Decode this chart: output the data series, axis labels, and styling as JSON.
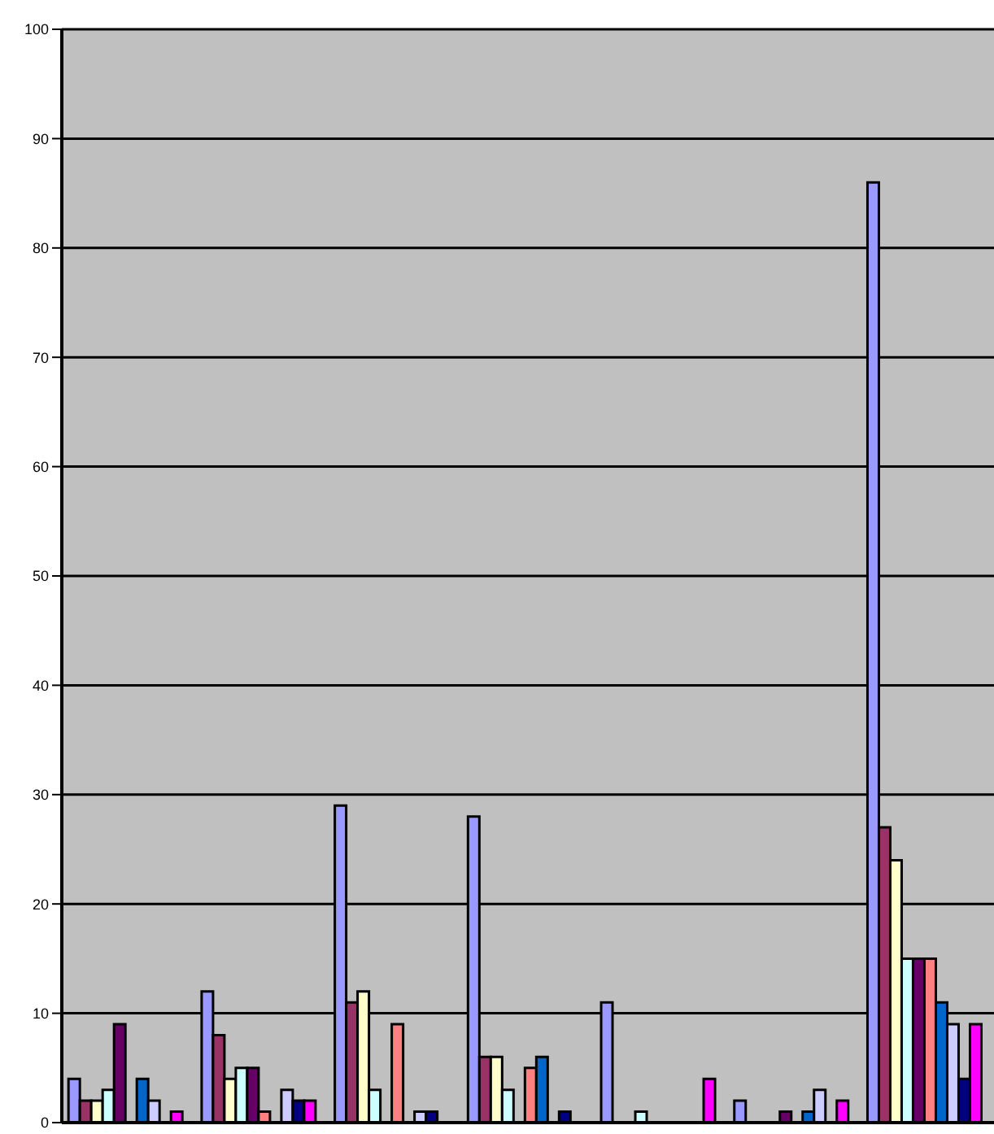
{
  "chart_data": {
    "type": "bar",
    "categories": [
      null,
      null,
      null,
      null,
      null,
      null,
      null
    ],
    "series": [
      {
        "color": "#9999ff",
        "values": [
          4,
          12,
          29,
          28,
          11,
          2,
          86
        ]
      },
      {
        "color": "#993366",
        "values": [
          2,
          8,
          11,
          6,
          0,
          0,
          27
        ]
      },
      {
        "color": "#ffffcc",
        "values": [
          2,
          4,
          12,
          6,
          0,
          0,
          24
        ]
      },
      {
        "color": "#ccffff",
        "values": [
          3,
          5,
          3,
          3,
          1,
          0,
          15
        ]
      },
      {
        "color": "#660066",
        "values": [
          9,
          5,
          0,
          0,
          0,
          1,
          15
        ]
      },
      {
        "color": "#ff8080",
        "values": [
          0,
          1,
          9,
          5,
          0,
          0,
          15
        ]
      },
      {
        "color": "#0066cc",
        "values": [
          4,
          0,
          0,
          6,
          0,
          1,
          11
        ]
      },
      {
        "color": "#ccccff",
        "values": [
          2,
          3,
          1,
          0,
          0,
          3,
          9
        ]
      },
      {
        "color": "#000080",
        "values": [
          0,
          2,
          1,
          1,
          0,
          0,
          4
        ]
      },
      {
        "color": "#ff00ff",
        "values": [
          1,
          2,
          0,
          0,
          4,
          2,
          9
        ]
      }
    ],
    "ylim": [
      0,
      100
    ],
    "yticks": [
      0,
      10,
      20,
      30,
      40,
      50,
      60,
      70,
      80,
      90,
      100
    ],
    "grid": "y",
    "tick_labels": "y"
  }
}
